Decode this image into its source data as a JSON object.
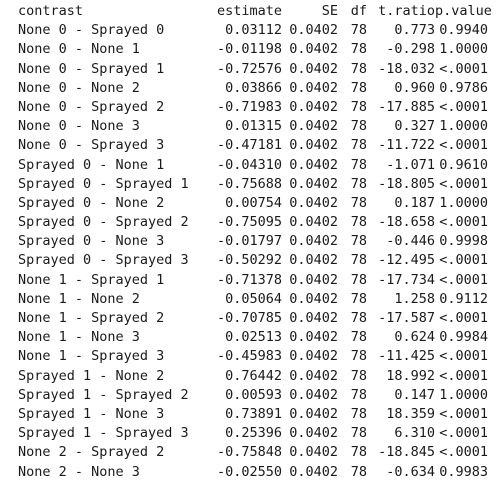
{
  "table": {
    "headers": {
      "contrast": "contrast",
      "estimate": "estimate",
      "se": "SE",
      "df": "df",
      "t_ratio": "t.ratio",
      "p_value": "p.value"
    },
    "rows": [
      [
        "None 0 - Sprayed 0",
        "0.03112",
        "0.0402",
        "78",
        "0.773",
        "0.9940"
      ],
      [
        "None 0 - None 1",
        "-0.01198",
        "0.0402",
        "78",
        "-0.298",
        "1.0000"
      ],
      [
        "None 0 - Sprayed 1",
        "-0.72576",
        "0.0402",
        "78",
        "-18.032",
        "<.0001"
      ],
      [
        "None 0 - None 2",
        "0.03866",
        "0.0402",
        "78",
        "0.960",
        "0.9786"
      ],
      [
        "None 0 - Sprayed 2",
        "-0.71983",
        "0.0402",
        "78",
        "-17.885",
        "<.0001"
      ],
      [
        "None 0 - None 3",
        "0.01315",
        "0.0402",
        "78",
        "0.327",
        "1.0000"
      ],
      [
        "None 0 - Sprayed 3",
        "-0.47181",
        "0.0402",
        "78",
        "-11.722",
        "<.0001"
      ],
      [
        "Sprayed 0 - None 1",
        "-0.04310",
        "0.0402",
        "78",
        "-1.071",
        "0.9610"
      ],
      [
        "Sprayed 0 - Sprayed 1",
        "-0.75688",
        "0.0402",
        "78",
        "-18.805",
        "<.0001"
      ],
      [
        "Sprayed 0 - None 2",
        "0.00754",
        "0.0402",
        "78",
        "0.187",
        "1.0000"
      ],
      [
        "Sprayed 0 - Sprayed 2",
        "-0.75095",
        "0.0402",
        "78",
        "-18.658",
        "<.0001"
      ],
      [
        "Sprayed 0 - None 3",
        "-0.01797",
        "0.0402",
        "78",
        "-0.446",
        "0.9998"
      ],
      [
        "Sprayed 0 - Sprayed 3",
        "-0.50292",
        "0.0402",
        "78",
        "-12.495",
        "<.0001"
      ],
      [
        "None 1 - Sprayed 1",
        "-0.71378",
        "0.0402",
        "78",
        "-17.734",
        "<.0001"
      ],
      [
        "None 1 - None 2",
        "0.05064",
        "0.0402",
        "78",
        "1.258",
        "0.9112"
      ],
      [
        "None 1 - Sprayed 2",
        "-0.70785",
        "0.0402",
        "78",
        "-17.587",
        "<.0001"
      ],
      [
        "None 1 - None 3",
        "0.02513",
        "0.0402",
        "78",
        "0.624",
        "0.9984"
      ],
      [
        "None 1 - Sprayed 3",
        "-0.45983",
        "0.0402",
        "78",
        "-11.425",
        "<.0001"
      ],
      [
        "Sprayed 1 - None 2",
        "0.76442",
        "0.0402",
        "78",
        "18.992",
        "<.0001"
      ],
      [
        "Sprayed 1 - Sprayed 2",
        "0.00593",
        "0.0402",
        "78",
        "0.147",
        "1.0000"
      ],
      [
        "Sprayed 1 - None 3",
        "0.73891",
        "0.0402",
        "78",
        "18.359",
        "<.0001"
      ],
      [
        "Sprayed 1 - Sprayed 3",
        "0.25396",
        "0.0402",
        "78",
        "6.310",
        "<.0001"
      ],
      [
        "None 2 - Sprayed 2",
        "-0.75848",
        "0.0402",
        "78",
        "-18.845",
        "<.0001"
      ],
      [
        "None 2 - None 3",
        "-0.02550",
        "0.0402",
        "78",
        "-0.634",
        "0.9983"
      ]
    ]
  },
  "colors": {
    "text": "#1a1a1a",
    "background": "#ffffff"
  }
}
